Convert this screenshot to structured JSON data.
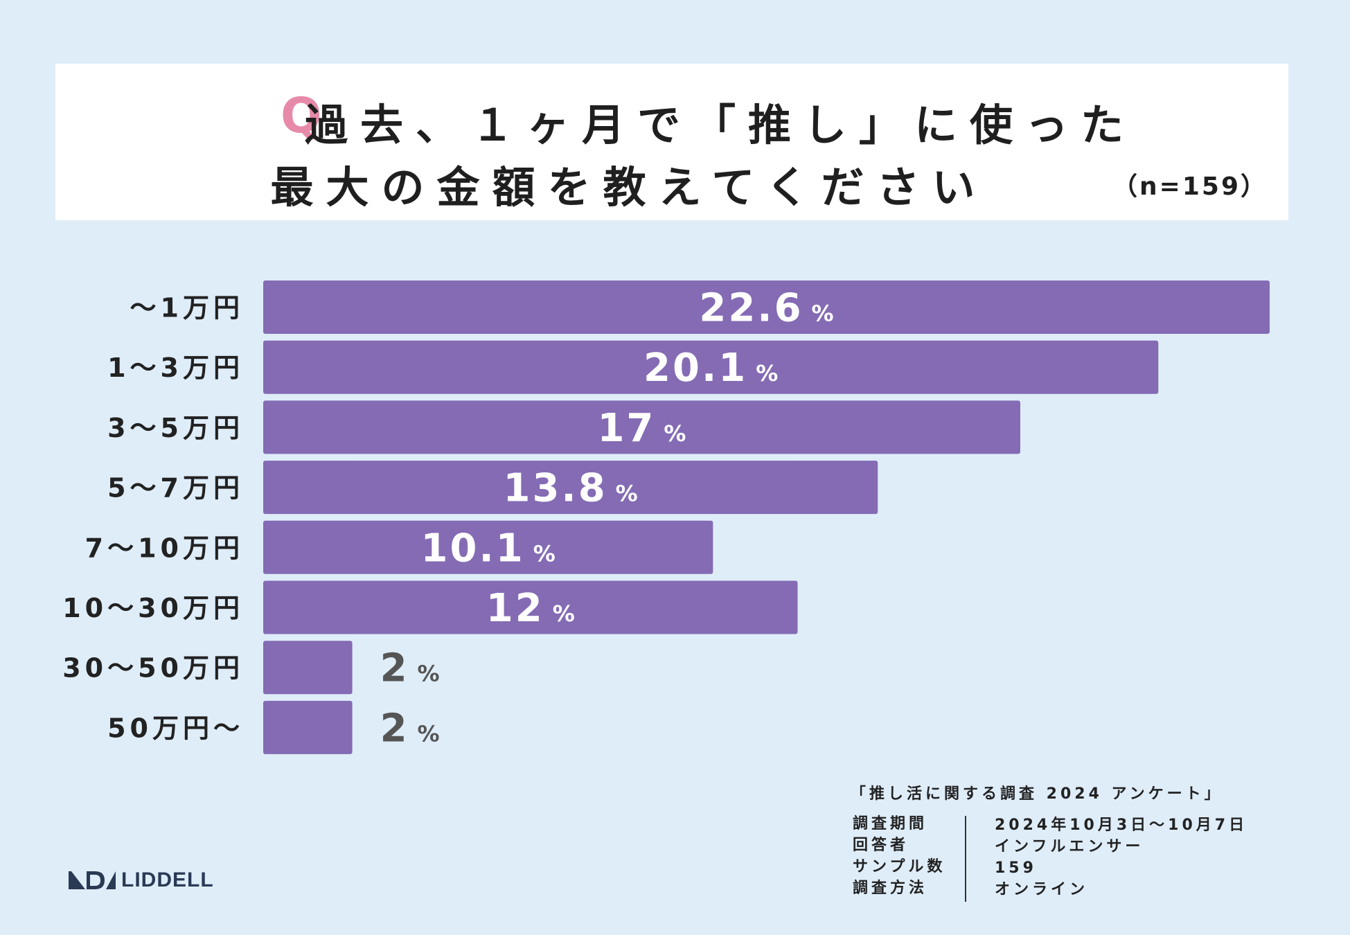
{
  "title": {
    "q_mark": "Q",
    "line1": "過去、１ヶ月で「推し」に使った",
    "line2": "最大の金額を教えてください",
    "n": "（n=159）"
  },
  "chart_data": {
    "type": "bar",
    "orientation": "horizontal",
    "categories": [
      "～1万円",
      "1～3万円",
      "3～5万円",
      "5～7万円",
      "7～10万円",
      "10～30万円",
      "30～50万円",
      "50万円～"
    ],
    "values": [
      22.6,
      20.1,
      17,
      13.8,
      10.1,
      12,
      2,
      2
    ],
    "value_labels": [
      "22.6",
      "20.1",
      "17",
      "13.8",
      "10.1",
      "12",
      "2",
      "2"
    ],
    "unit": "%",
    "bar_color": "#846bb4",
    "xlim": [
      0,
      22.6
    ],
    "grid": false
  },
  "footer": {
    "survey_title": "「推し活に関する調査 2024 アンケート」",
    "rows": [
      {
        "key": "調査期間",
        "value": "2024年10月3日～10月7日"
      },
      {
        "key": "回答者",
        "value": "インフルエンサー"
      },
      {
        "key": "サンプル数",
        "value": "159"
      },
      {
        "key": "調査方法",
        "value": "オンライン"
      }
    ]
  },
  "logo": {
    "text": "LIDDELL",
    "color": "#2a3a55"
  }
}
